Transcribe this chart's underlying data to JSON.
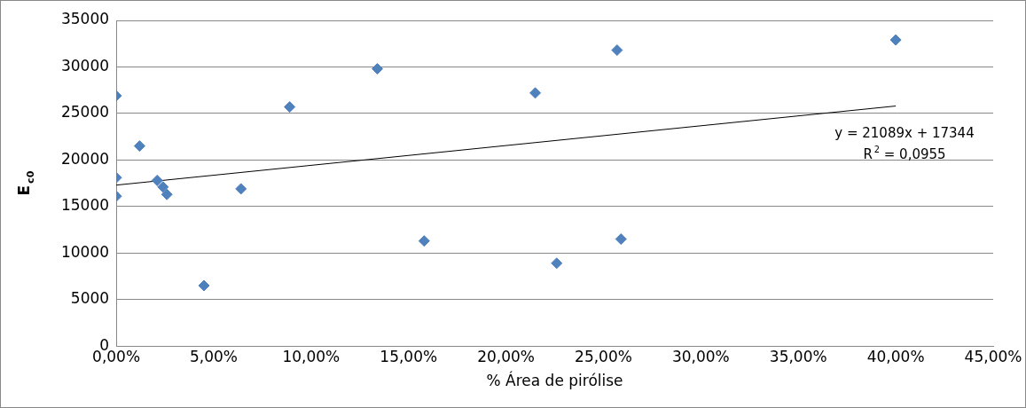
{
  "chart_data": {
    "type": "scatter",
    "xlabel": "% Área de pirólise",
    "ylabel": "E$_{c0}$",
    "xlim": [
      0,
      0.45
    ],
    "xticks": [
      {
        "value": 0,
        "label": "0,00%"
      },
      {
        "value": 0.05,
        "label": "5,00%"
      },
      {
        "value": 0.1,
        "label": "10,00%"
      },
      {
        "value": 0.15,
        "label": "15,00%"
      },
      {
        "value": 0.2,
        "label": "20,00%"
      },
      {
        "value": 0.25,
        "label": "25,00%"
      },
      {
        "value": 0.3,
        "label": "30,00%"
      },
      {
        "value": 0.35,
        "label": "35,00%"
      },
      {
        "value": 0.4,
        "label": "40,00%"
      },
      {
        "value": 0.45,
        "label": "45,00%"
      }
    ],
    "ylim": [
      0,
      35000
    ],
    "yticks": [
      0,
      5000,
      10000,
      15000,
      20000,
      25000,
      30000,
      35000
    ],
    "grid": "y",
    "legend": false,
    "marker": "diamond",
    "series": [
      {
        "type": "scatter",
        "color": "#4f81bd",
        "x": [
          0,
          0,
          0,
          0.012,
          0.021,
          0.024,
          0.026,
          0.045,
          0.064,
          0.089,
          0.134,
          0.158,
          0.215,
          0.226,
          0.257,
          0.259,
          0.4
        ],
        "values": [
          26900,
          18100,
          16100,
          21500,
          17800,
          17100,
          16300,
          6500,
          16900,
          25700,
          29800,
          11300,
          27200,
          8900,
          31800,
          11500,
          32900
        ]
      },
      {
        "type": "line",
        "color": "#000000",
        "marker": "none",
        "x": [
          0,
          0.4
        ],
        "values": [
          17300,
          25800
        ]
      }
    ],
    "annotations": [
      "y = 21089x + 17344",
      "R$^{2}$ = 0,0955"
    ]
  }
}
